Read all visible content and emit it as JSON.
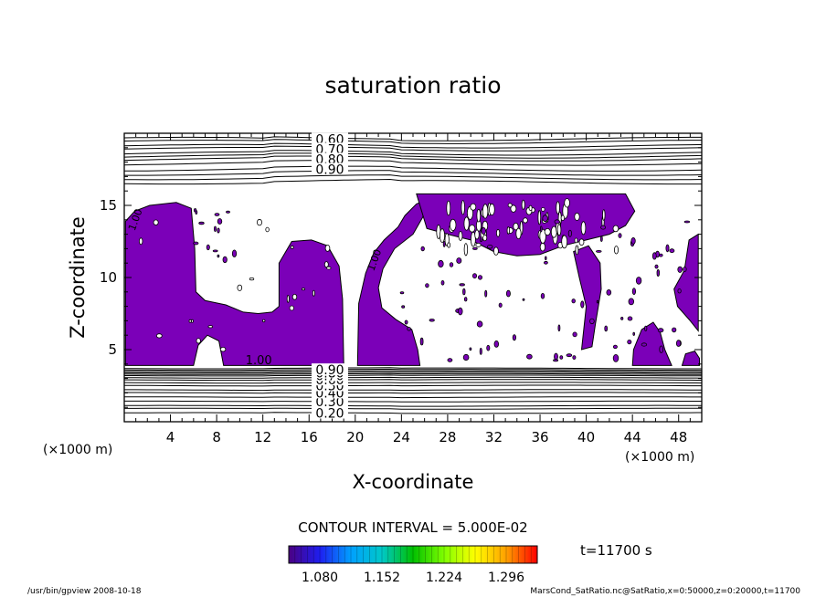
{
  "chart_data": {
    "type": "heatmap",
    "title": "saturation ratio",
    "xlabel": "X-coordinate",
    "ylabel": "Z-coordinate",
    "x_unit_left": "(×1000 m)",
    "x_unit_right": "(×1000 m)",
    "xlim": [
      0,
      50
    ],
    "ylim": [
      0,
      20
    ],
    "xticks": [
      4,
      8,
      12,
      16,
      20,
      24,
      28,
      32,
      36,
      40,
      44,
      48
    ],
    "yticks": [
      5,
      10,
      15
    ],
    "upper_contours": [
      {
        "value": 0.6,
        "label": "0.60",
        "z": 19.6
      },
      {
        "value": 0.7,
        "label": "0.70",
        "z": 18.9
      },
      {
        "value": 0.8,
        "label": "0.80",
        "z": 18.2
      },
      {
        "value": 0.9,
        "label": "0.90",
        "z": 17.5
      }
    ],
    "upper_extra_lines_z": [
      19.4,
      19.1,
      18.6,
      18.4,
      17.9,
      17.2,
      16.9,
      16.6
    ],
    "lower_contours": [
      {
        "value": 0.2,
        "label": "0.20",
        "z": 0.6
      },
      {
        "value": 0.3,
        "label": "0.30",
        "z": 1.4
      },
      {
        "value": 0.4,
        "label": "0.40",
        "z": 2.0
      },
      {
        "value": 0.5,
        "label": "0.50",
        "z": 2.5
      },
      {
        "value": 0.6,
        "label": "0.60",
        "z": 2.9
      },
      {
        "value": 0.7,
        "label": "0.70",
        "z": 3.2
      },
      {
        "value": 0.8,
        "label": "0.80",
        "z": 3.4
      },
      {
        "value": 0.9,
        "label": "0.90",
        "z": 3.6
      }
    ],
    "lower_extra_lines_z": [
      0.9,
      1.1,
      1.7,
      2.2,
      2.7,
      3.05,
      3.3,
      3.5,
      3.7
    ],
    "saturation_label": "1.00",
    "supersaturated_color": "#7b00b8",
    "supersaturated_regions": [
      {
        "name": "left-block",
        "points": [
          [
            0.1,
            3.9
          ],
          [
            0.1,
            13.9
          ],
          [
            0.9,
            14.6
          ],
          [
            2.2,
            15.0
          ],
          [
            4.5,
            15.2
          ],
          [
            5.8,
            14.8
          ],
          [
            6.1,
            12.0
          ],
          [
            6.2,
            9.0
          ],
          [
            7.0,
            8.4
          ],
          [
            8.8,
            8.1
          ],
          [
            10.3,
            7.6
          ],
          [
            11.6,
            7.5
          ],
          [
            12.8,
            7.6
          ],
          [
            13.4,
            8.0
          ],
          [
            13.4,
            11.0
          ],
          [
            14.5,
            12.5
          ],
          [
            16.2,
            12.6
          ],
          [
            17.6,
            12.2
          ],
          [
            18.6,
            10.8
          ],
          [
            18.9,
            8.5
          ],
          [
            19.0,
            3.9
          ],
          [
            8.6,
            3.9
          ],
          [
            8.2,
            5.6
          ],
          [
            7.2,
            6.0
          ],
          [
            6.4,
            5.3
          ],
          [
            6.0,
            3.9
          ]
        ]
      },
      {
        "name": "center-left",
        "points": [
          [
            20.2,
            3.9
          ],
          [
            20.3,
            8.2
          ],
          [
            20.9,
            10.3
          ],
          [
            21.6,
            11.7
          ],
          [
            22.5,
            12.6
          ],
          [
            23.7,
            13.5
          ],
          [
            24.3,
            14.3
          ],
          [
            25.3,
            15.1
          ],
          [
            25.9,
            15.3
          ],
          [
            26.0,
            14.4
          ],
          [
            25.0,
            13.0
          ],
          [
            23.4,
            12.0
          ],
          [
            22.4,
            10.6
          ],
          [
            22.0,
            9.3
          ],
          [
            22.3,
            7.9
          ],
          [
            23.5,
            7.1
          ],
          [
            24.9,
            6.4
          ],
          [
            25.4,
            5.0
          ],
          [
            25.6,
            3.9
          ]
        ]
      },
      {
        "name": "top-band",
        "points": [
          [
            25.3,
            15.8
          ],
          [
            43.4,
            15.8
          ],
          [
            44.2,
            14.6
          ],
          [
            43.4,
            13.6
          ],
          [
            42.0,
            13.0
          ],
          [
            40.0,
            12.6
          ],
          [
            38.0,
            12.2
          ],
          [
            36.0,
            11.6
          ],
          [
            34.0,
            11.5
          ],
          [
            32.0,
            11.8
          ],
          [
            30.0,
            12.6
          ],
          [
            28.0,
            13.0
          ],
          [
            26.2,
            13.4
          ]
        ]
      },
      {
        "name": "right-lobe",
        "points": [
          [
            39.6,
            5.0
          ],
          [
            40.0,
            8.0
          ],
          [
            39.4,
            10.0
          ],
          [
            38.9,
            11.8
          ],
          [
            40.2,
            12.2
          ],
          [
            41.2,
            11.0
          ],
          [
            41.3,
            9.2
          ],
          [
            40.8,
            6.8
          ],
          [
            40.5,
            5.2
          ]
        ]
      },
      {
        "name": "far-right-upper",
        "points": [
          [
            49.7,
            13.0
          ],
          [
            48.9,
            12.6
          ],
          [
            48.5,
            10.5
          ],
          [
            47.6,
            9.2
          ],
          [
            47.9,
            8.0
          ],
          [
            49.0,
            7.0
          ],
          [
            49.7,
            6.3
          ]
        ]
      },
      {
        "name": "lower-right",
        "points": [
          [
            44.0,
            3.9
          ],
          [
            44.1,
            5.0
          ],
          [
            44.8,
            6.4
          ],
          [
            45.8,
            6.9
          ],
          [
            46.4,
            6.2
          ],
          [
            46.8,
            5.0
          ],
          [
            47.4,
            3.9
          ]
        ]
      },
      {
        "name": "bottom-right-corner",
        "points": [
          [
            48.3,
            3.9
          ],
          [
            48.6,
            4.7
          ],
          [
            49.4,
            4.9
          ],
          [
            49.8,
            4.4
          ],
          [
            49.8,
            3.9
          ]
        ]
      }
    ],
    "colorbar": {
      "range": [
        1.044,
        1.332
      ],
      "tick_labels": [
        "1.080",
        "1.152",
        "1.224",
        "1.296"
      ],
      "stops": [
        "#4b0082",
        "#1e1ef0",
        "#00a0ff",
        "#00c8c8",
        "#00c000",
        "#80ff00",
        "#ffff00",
        "#ffa000",
        "#ff0000"
      ]
    },
    "contour_interval_text": "CONTOUR INTERVAL = 5.000E-02",
    "time_text": "t=11700  s",
    "footer_left": "/usr/bin/gpview   2008-10-18",
    "footer_right": "MarsCond_SatRatio.nc@SatRatio,x=0:50000,z=0:20000,t=11700"
  }
}
